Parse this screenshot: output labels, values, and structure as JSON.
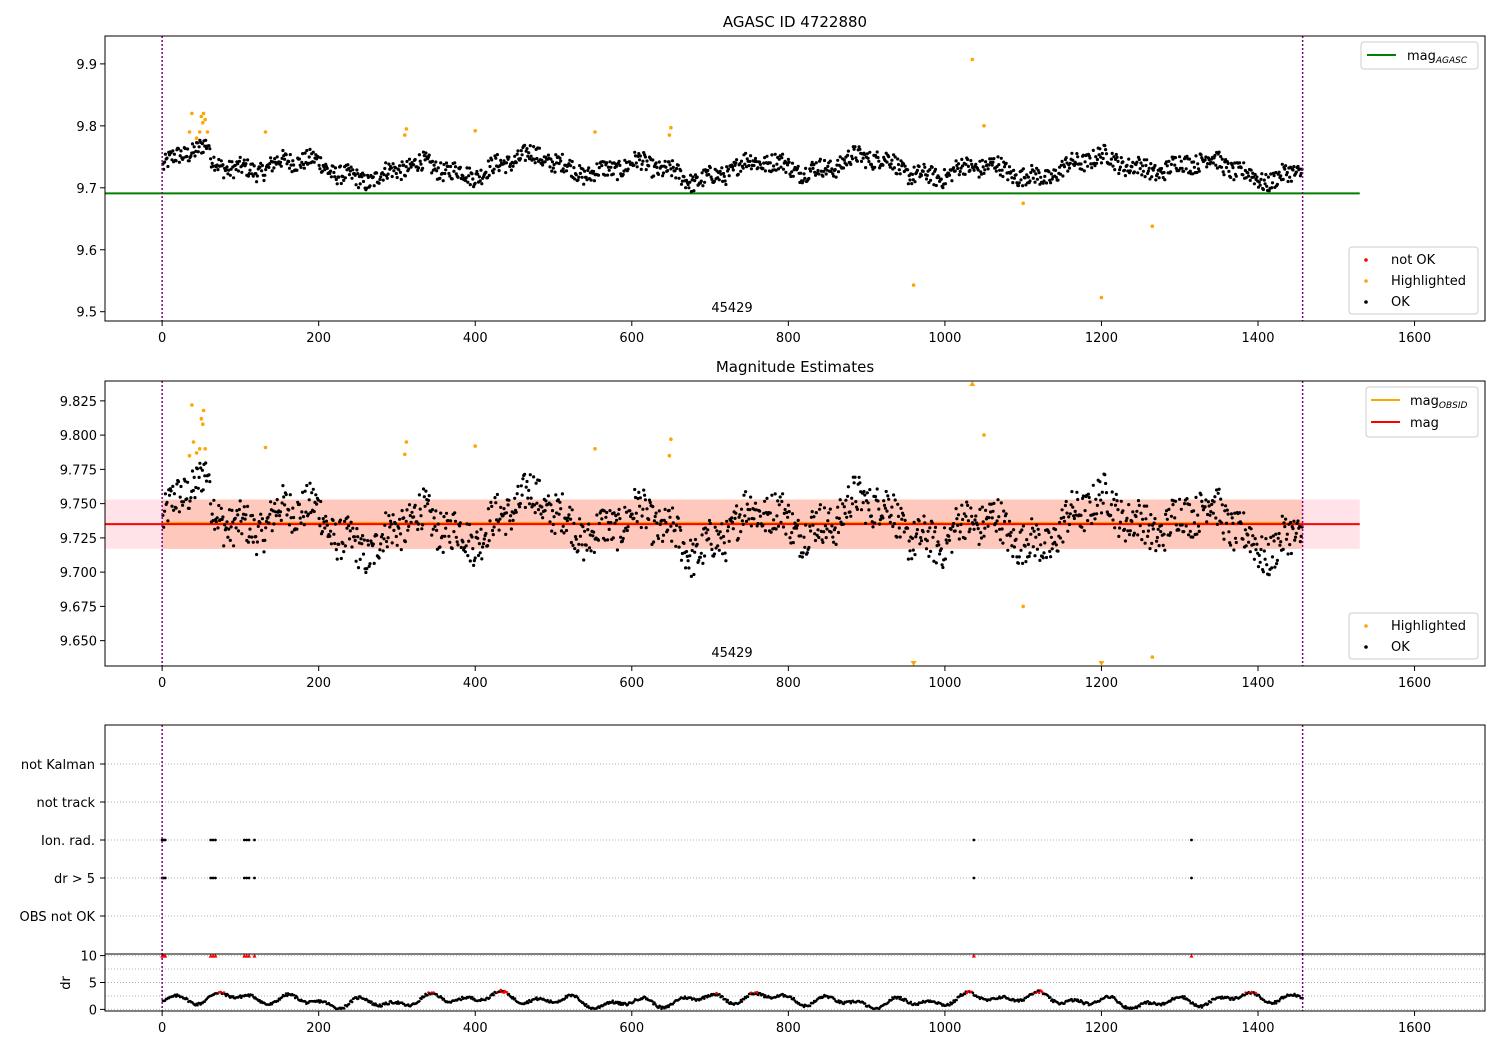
{
  "figure": {
    "title_left": "",
    "background": "#ffffff"
  },
  "chart_data": [
    {
      "type": "scatter",
      "title": "AGASC ID 4722880",
      "annotation": "45429",
      "xlim": [
        -73,
        1690
      ],
      "ylim": [
        9.485,
        9.945
      ],
      "xticks": [
        0,
        200,
        400,
        600,
        800,
        1000,
        1200,
        1400,
        1600
      ],
      "yticks": [
        9.5,
        9.6,
        9.7,
        9.8,
        9.9
      ],
      "ytick_labels": [
        "9.5",
        "9.6",
        "9.7",
        "9.8",
        "9.9"
      ],
      "vlines": [
        0,
        1457
      ],
      "vline_color": "#7f007f",
      "hline": {
        "name": "mag_AGASC",
        "label_main": "mag",
        "label_sub": "AGASC",
        "value": 9.691,
        "x": [
          -73,
          1530
        ],
        "color": "#008000"
      },
      "series": [
        {
          "name": "not OK",
          "color": "#ff0000",
          "points": []
        },
        {
          "name": "Highlighted",
          "color": "#ffa500",
          "points": [
            [
              35,
              9.79
            ],
            [
              38,
              9.82
            ],
            [
              44,
              9.78
            ],
            [
              48,
              9.79
            ],
            [
              50,
              9.815
            ],
            [
              52,
              9.805
            ],
            [
              53,
              9.82
            ],
            [
              55,
              9.81
            ],
            [
              58,
              9.79
            ],
            [
              132,
              9.79
            ],
            [
              310,
              9.785
            ],
            [
              312,
              9.795
            ],
            [
              400,
              9.792
            ],
            [
              553,
              9.79
            ],
            [
              648,
              9.785
            ],
            [
              650,
              9.797
            ],
            [
              960,
              9.543
            ],
            [
              1035,
              9.907
            ],
            [
              1050,
              9.8
            ],
            [
              1100,
              9.675
            ],
            [
              1200,
              9.523
            ],
            [
              1265,
              9.638
            ]
          ]
        },
        {
          "name": "OK",
          "color": "#000000",
          "points": "generated-track"
        }
      ],
      "legend_lines": [
        "mag_AGASC"
      ],
      "legend_points": [
        "not OK",
        "Highlighted",
        "OK"
      ],
      "grid": false
    },
    {
      "type": "scatter",
      "title": "Magnitude Estimates",
      "annotation": "45429",
      "xlim": [
        -73,
        1690
      ],
      "ylim": [
        9.6315,
        9.8395
      ],
      "xticks": [
        0,
        200,
        400,
        600,
        800,
        1000,
        1200,
        1400,
        1600
      ],
      "yticks": [
        9.65,
        9.675,
        9.7,
        9.725,
        9.75,
        9.775,
        9.8,
        9.825
      ],
      "ytick_labels": [
        "9.650",
        "9.675",
        "9.700",
        "9.725",
        "9.750",
        "9.775",
        "9.800",
        "9.825"
      ],
      "vlines": [
        0,
        1457
      ],
      "vline_color": "#7f007f",
      "bands": [
        {
          "y": [
            9.717,
            9.753
          ],
          "x": [
            -73,
            1530
          ],
          "color": "#ffc0cb",
          "opacity": 0.45
        },
        {
          "y": [
            9.717,
            9.753
          ],
          "x": [
            0,
            1457
          ],
          "color": "#ffa07a",
          "opacity": 0.4
        }
      ],
      "hlines": [
        {
          "name": "mag_OBSID",
          "label_main": "mag",
          "label_sub": "OBSID",
          "value": 9.736,
          "x": [
            0,
            1457
          ],
          "color": "#ffa500"
        },
        {
          "name": "mag",
          "label_main": "mag",
          "label_sub": "",
          "value": 9.735,
          "x": [
            -73,
            1530
          ],
          "color": "#ff0000"
        }
      ],
      "series": [
        {
          "name": "Highlighted",
          "color": "#ffa500",
          "points": [
            [
              35,
              9.785
            ],
            [
              38,
              9.822
            ],
            [
              40,
              9.795
            ],
            [
              44,
              9.787
            ],
            [
              48,
              9.79
            ],
            [
              50,
              9.812
            ],
            [
              52,
              9.808
            ],
            [
              53,
              9.818
            ],
            [
              55,
              9.79
            ],
            [
              132,
              9.791
            ],
            [
              310,
              9.786
            ],
            [
              312,
              9.795
            ],
            [
              400,
              9.792
            ],
            [
              553,
              9.79
            ],
            [
              648,
              9.785
            ],
            [
              650,
              9.797
            ],
            [
              1050,
              9.8
            ],
            [
              1100,
              9.675
            ],
            [
              1265,
              9.638
            ]
          ]
        },
        {
          "name": "OK",
          "color": "#000000",
          "points": "generated-track"
        }
      ],
      "markers_out_of_range": [
        {
          "x": 960,
          "dir": "down",
          "color": "#ffa500"
        },
        {
          "x": 1035,
          "dir": "up",
          "color": "#ffa500"
        },
        {
          "x": 1200,
          "dir": "down",
          "color": "#ffa500"
        }
      ],
      "legend_lines": [
        "mag_OBSID",
        "mag"
      ],
      "legend_points": [
        "Highlighted",
        "OK"
      ],
      "grid": false
    },
    {
      "type": "scatter",
      "title": "",
      "xlim": [
        -73,
        1690
      ],
      "categories": [
        "not Kalman",
        "not track",
        "Ion. rad.",
        "dr > 5",
        "OBS not OK"
      ],
      "flag_points": {
        "Ion. rad.": [
          0,
          2,
          4,
          62,
          65,
          68,
          105,
          108,
          111,
          118,
          1037,
          1315
        ],
        "dr > 5": [
          0,
          2,
          4,
          62,
          65,
          68,
          105,
          108,
          111,
          118,
          1037,
          1315
        ]
      },
      "vlines": [
        0,
        1457
      ],
      "vline_color": "#7f007f",
      "grid": "dotted"
    },
    {
      "type": "scatter",
      "title": "",
      "ylabel": "dr",
      "xlim": [
        -73,
        1690
      ],
      "ylim": [
        -0.3,
        10.3
      ],
      "yticks": [
        0,
        5,
        10
      ],
      "ytick_labels": [
        "0",
        "5",
        "10"
      ],
      "xticks": [
        0,
        200,
        400,
        600,
        800,
        1000,
        1200,
        1400,
        1600
      ],
      "xtick_labels": [
        "0",
        "200",
        "400",
        "600",
        "800",
        "1000",
        "1200",
        "1400",
        "1600"
      ],
      "clip_value": 10,
      "clipped_x": [
        0,
        2,
        4,
        62,
        65,
        68,
        105,
        108,
        111,
        118,
        1037,
        1315
      ],
      "series": [
        {
          "name": "dr",
          "color": "#000000",
          "points": "generated-track"
        },
        {
          "name": "dr high",
          "color": "#ff0000",
          "points": "generated-track"
        }
      ],
      "vlines": [
        0,
        1457
      ],
      "vline_color": "#7f007f",
      "grid": "dotted"
    }
  ]
}
